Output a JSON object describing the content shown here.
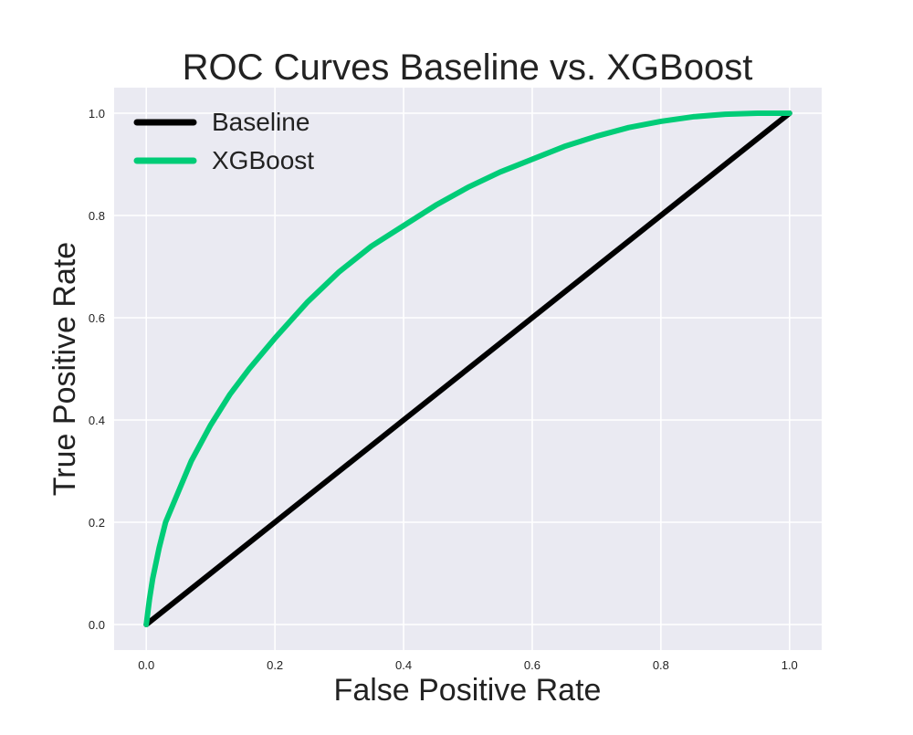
{
  "chart_data": {
    "type": "line",
    "title": "ROC Curves Baseline vs. XGBoost",
    "xlabel": "False Positive Rate",
    "ylabel": "True Positive Rate",
    "xlim": [
      -0.05,
      1.05
    ],
    "ylim": [
      -0.05,
      1.05
    ],
    "xticks": [
      0.0,
      0.2,
      0.4,
      0.6,
      0.8,
      1.0
    ],
    "yticks": [
      0.0,
      0.2,
      0.4,
      0.6,
      0.8,
      1.0
    ],
    "xtick_labels": [
      "0.0",
      "0.2",
      "0.4",
      "0.6",
      "0.8",
      "1.0"
    ],
    "ytick_labels": [
      "0.0",
      "0.2",
      "0.4",
      "0.6",
      "0.8",
      "1.0"
    ],
    "grid": true,
    "legend_position": "top-left",
    "series": [
      {
        "name": "Baseline",
        "color": "#000000",
        "x": [
          0.0,
          1.0
        ],
        "y": [
          0.0,
          1.0
        ]
      },
      {
        "name": "XGBoost",
        "color": "#00cc77",
        "x": [
          0.0,
          0.005,
          0.01,
          0.02,
          0.03,
          0.05,
          0.07,
          0.1,
          0.13,
          0.16,
          0.2,
          0.25,
          0.3,
          0.35,
          0.4,
          0.45,
          0.5,
          0.55,
          0.6,
          0.65,
          0.7,
          0.75,
          0.8,
          0.85,
          0.9,
          0.95,
          1.0
        ],
        "y": [
          0.0,
          0.05,
          0.09,
          0.15,
          0.2,
          0.26,
          0.32,
          0.39,
          0.45,
          0.5,
          0.56,
          0.63,
          0.69,
          0.74,
          0.78,
          0.82,
          0.855,
          0.885,
          0.91,
          0.935,
          0.955,
          0.972,
          0.984,
          0.993,
          0.998,
          1.0,
          1.0
        ]
      }
    ]
  }
}
